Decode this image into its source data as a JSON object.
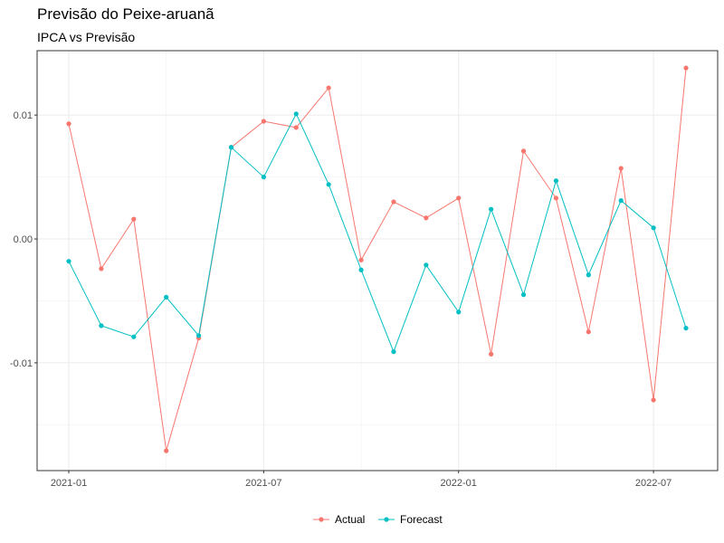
{
  "title": "Previsão do Peixe-aruanã",
  "subtitle": "IPCA vs Previsão",
  "chart_data": {
    "type": "line",
    "title": "Previsão do Peixe-aruanã",
    "subtitle": "IPCA vs Previsão",
    "xlabel": "",
    "ylabel": "",
    "x": [
      "2021-01",
      "2021-02",
      "2021-03",
      "2021-04",
      "2021-05",
      "2021-06",
      "2021-07",
      "2021-08",
      "2021-09",
      "2021-10",
      "2021-11",
      "2021-12",
      "2022-01",
      "2022-02",
      "2022-03",
      "2022-04",
      "2022-05",
      "2022-06",
      "2022-07",
      "2022-08"
    ],
    "xticks": [
      "2021-01",
      "2021-07",
      "2022-01",
      "2022-07"
    ],
    "yticks": [
      -0.01,
      0.0,
      0.01
    ],
    "ytick_labels": [
      "-0.01",
      "0.00",
      "0.01"
    ],
    "ylim": [
      -0.0187,
      0.0152
    ],
    "grid": true,
    "legend_position": "bottom",
    "series": [
      {
        "name": "Actual",
        "color": "#F8766D",
        "values": [
          0.0093,
          -0.0024,
          0.0016,
          -0.0171,
          -0.008,
          0.0074,
          0.0095,
          0.009,
          0.0122,
          -0.0017,
          0.003,
          0.0017,
          0.0033,
          -0.0093,
          0.0071,
          0.0033,
          -0.0075,
          0.0057,
          -0.013,
          0.0138
        ]
      },
      {
        "name": "Forecast",
        "color": "#00BFC4",
        "values": [
          -0.0018,
          -0.007,
          -0.0079,
          -0.0047,
          -0.0078,
          0.0074,
          0.005,
          0.0101,
          0.0044,
          -0.0025,
          -0.0091,
          -0.0021,
          -0.0059,
          0.0024,
          -0.0045,
          0.0047,
          -0.0029,
          0.0031,
          0.0009,
          -0.0072
        ]
      }
    ]
  }
}
